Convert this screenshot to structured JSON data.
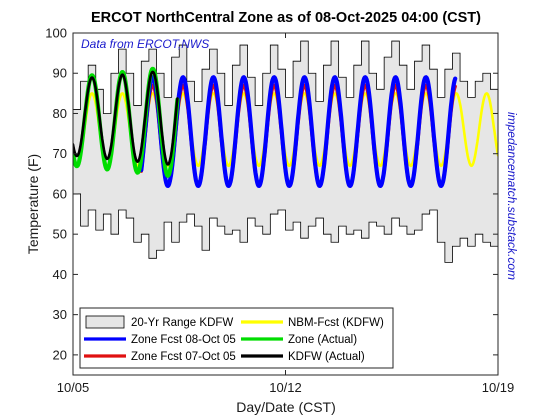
{
  "chart_data": {
    "type": "line",
    "title": "ERCOT NorthCentral Zone as of 08-Oct-2025 04:00 (CST)",
    "xlabel": "Day/Date (CST)",
    "ylabel": "Temperature (F)",
    "xlim": [
      0,
      14
    ],
    "ylim": [
      15,
      100
    ],
    "x_ticks": [
      {
        "x": 0,
        "label": "10/05"
      },
      {
        "x": 7,
        "label": "10/12"
      },
      {
        "x": 14,
        "label": "10/19"
      }
    ],
    "y_ticks": [
      20,
      30,
      40,
      50,
      60,
      70,
      80,
      90,
      100
    ],
    "grid": false,
    "legend_position": "bottom-left",
    "annotations": {
      "source": "Data from ERCOT,NWS",
      "right_side": "impedancematch.substack.com"
    },
    "legend": [
      {
        "label": "20-Yr Range KDFW",
        "color": "#e6e6e6",
        "kind": "patch"
      },
      {
        "label": "Zone Fcst 08-Oct 05",
        "color": "#0000ff",
        "kind": "line"
      },
      {
        "label": "Zone Fcst 07-Oct 05",
        "color": "#e01010",
        "kind": "line"
      },
      {
        "label": "NBM-Fcst (KDFW)",
        "color": "#ffff00",
        "kind": "line"
      },
      {
        "label": "Zone (Actual)",
        "color": "#00dd00",
        "kind": "line"
      },
      {
        "label": "KDFW (Actual)",
        "color": "#000000",
        "kind": "line"
      }
    ],
    "range_band": {
      "name": "20-Yr Range KDFW",
      "color": "#e6e6e6",
      "x": [
        0,
        0.25,
        0.5,
        0.75,
        1,
        1.25,
        1.5,
        1.75,
        2,
        2.25,
        2.5,
        2.75,
        3,
        3.25,
        3.5,
        3.75,
        4,
        4.25,
        4.5,
        4.75,
        5,
        5.25,
        5.5,
        5.75,
        6,
        6.25,
        6.5,
        6.75,
        7,
        7.25,
        7.5,
        7.75,
        8,
        8.25,
        8.5,
        8.75,
        9,
        9.25,
        9.5,
        9.75,
        10,
        10.25,
        10.5,
        10.75,
        11,
        11.25,
        11.5,
        11.75,
        12,
        12.25,
        12.5,
        12.75,
        13,
        13.25,
        13.5,
        13.75,
        14
      ],
      "upper": [
        81,
        88,
        92,
        86,
        80,
        90,
        96,
        90,
        82,
        93,
        96,
        90,
        84,
        94,
        97,
        88,
        83,
        91,
        96,
        90,
        82,
        92,
        97,
        89,
        82,
        90,
        97,
        91,
        84,
        93,
        98,
        90,
        83,
        92,
        98,
        89,
        84,
        92,
        98,
        90,
        86,
        94,
        98,
        92,
        86,
        93,
        97,
        91,
        84,
        91,
        95,
        88,
        84,
        88,
        90,
        86,
        86
      ],
      "lower": [
        60,
        52,
        56,
        51,
        55,
        50,
        56,
        54,
        48,
        50,
        44,
        46,
        53,
        48,
        53,
        55,
        52,
        46,
        54,
        52,
        50,
        51,
        48,
        54,
        52,
        50,
        55,
        56,
        51,
        53,
        49,
        52,
        54,
        50,
        48,
        52,
        50,
        51,
        49,
        53,
        52,
        50,
        54,
        52,
        50,
        51,
        55,
        56,
        48,
        43,
        47,
        49,
        47,
        50,
        48,
        47,
        46
      ]
    },
    "sine_series": [
      {
        "name": "NBM-Fcst (KDFW)",
        "color": "#ffff00",
        "width": 2.6,
        "x_start": 0.0,
        "x_end": 14.0,
        "mean": 76,
        "amp": 9,
        "amp_step": 0.0,
        "peak": 0.625
      },
      {
        "name": "Zone Fcst 07-Oct 05",
        "color": "#e01010",
        "width": 3.4,
        "x_start": 2.25,
        "x_end": 12.6,
        "mean": 74.5,
        "amp": 12.5,
        "amp_step": 0.0,
        "peak": 0.625
      },
      {
        "name": "Zone Fcst 08-Oct 05",
        "color": "#0000ff",
        "width": 4.2,
        "x_start": 2.25,
        "x_end": 12.6,
        "mean": 75.5,
        "amp": 13.5,
        "amp_step": 0.0,
        "peak": 0.625
      },
      {
        "name": "Zone (Actual)",
        "color": "#00dd00",
        "width": 4.2,
        "x_start": 0.0,
        "x_end": 3.45,
        "mean": 78,
        "amp": 11,
        "amp_step": 0.8,
        "peak": 0.625
      },
      {
        "name": "KDFW (Actual)",
        "color": "#000000",
        "width": 2.6,
        "x_start": 0.0,
        "x_end": 3.45,
        "mean": 79,
        "amp": 9.5,
        "amp_step": 0.7,
        "peak": 0.625
      }
    ]
  }
}
